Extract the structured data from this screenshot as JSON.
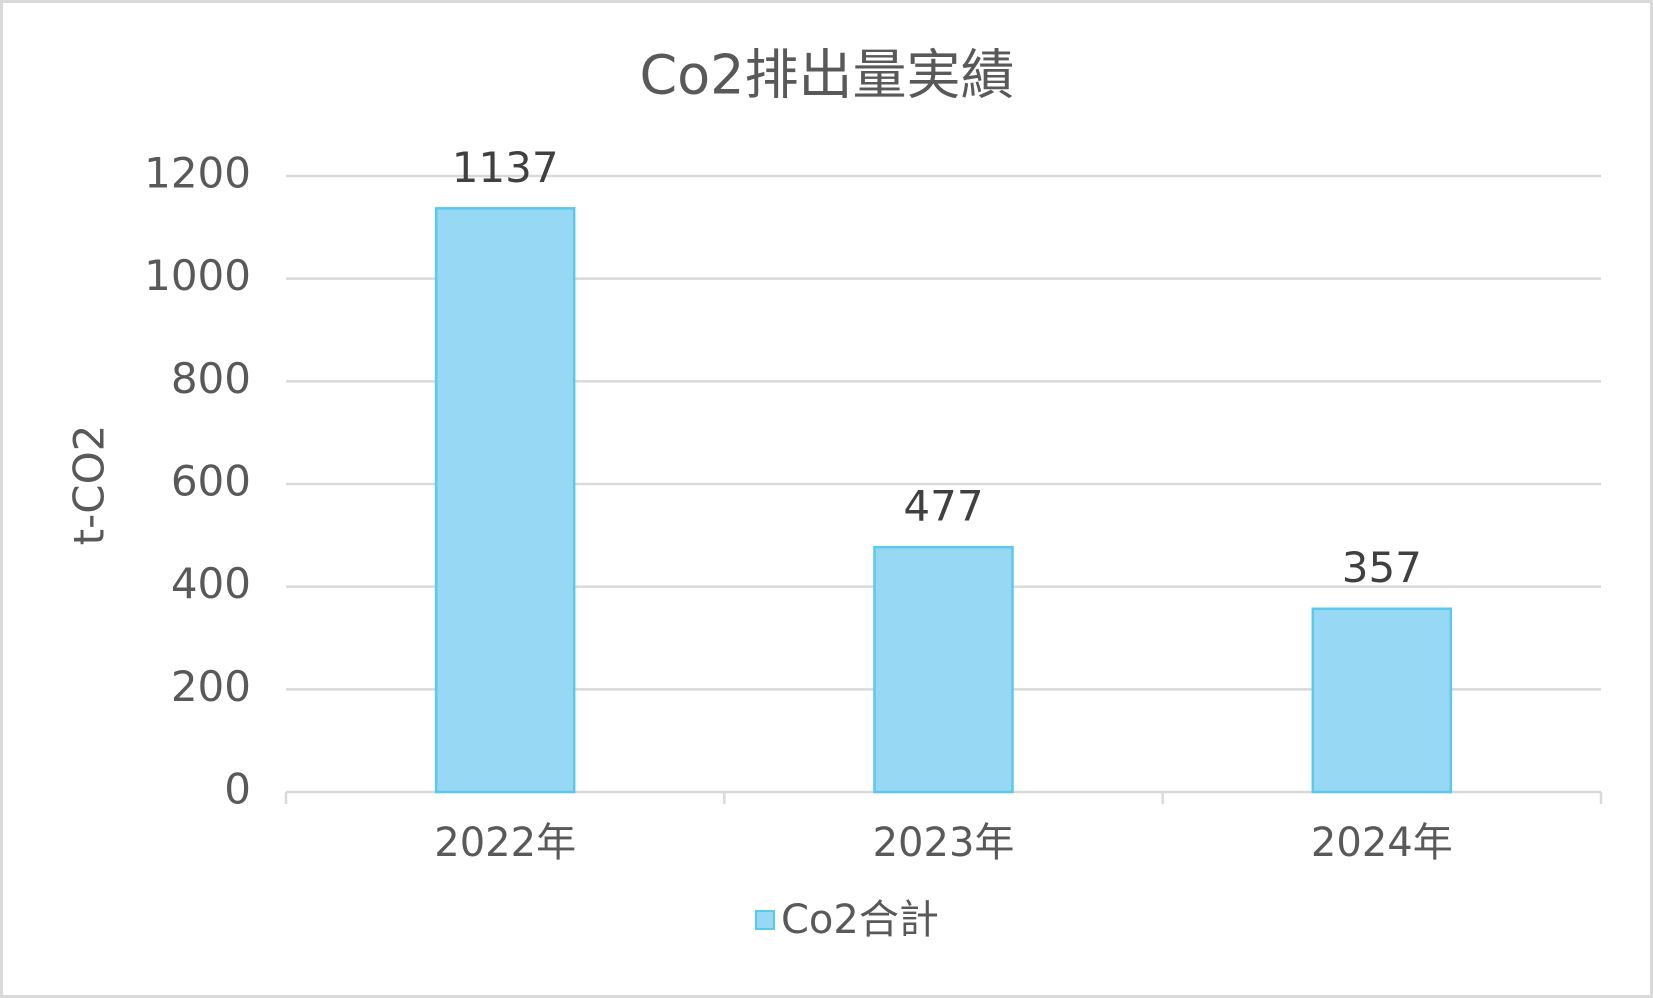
{
  "chart_data": {
    "type": "bar",
    "title": "Co2排出量実績",
    "y_label": "t-CO2",
    "categories": [
      "2022年",
      "2023年",
      "2024年"
    ],
    "series": [
      {
        "name": "Co2合計",
        "color": "#97d9f5",
        "values": [
          1137,
          477,
          357
        ]
      }
    ],
    "ylim": [
      0,
      1200
    ],
    "yticks": [
      0,
      200,
      400,
      600,
      800,
      1000,
      1200
    ],
    "grid": true,
    "legend": "bottom"
  }
}
